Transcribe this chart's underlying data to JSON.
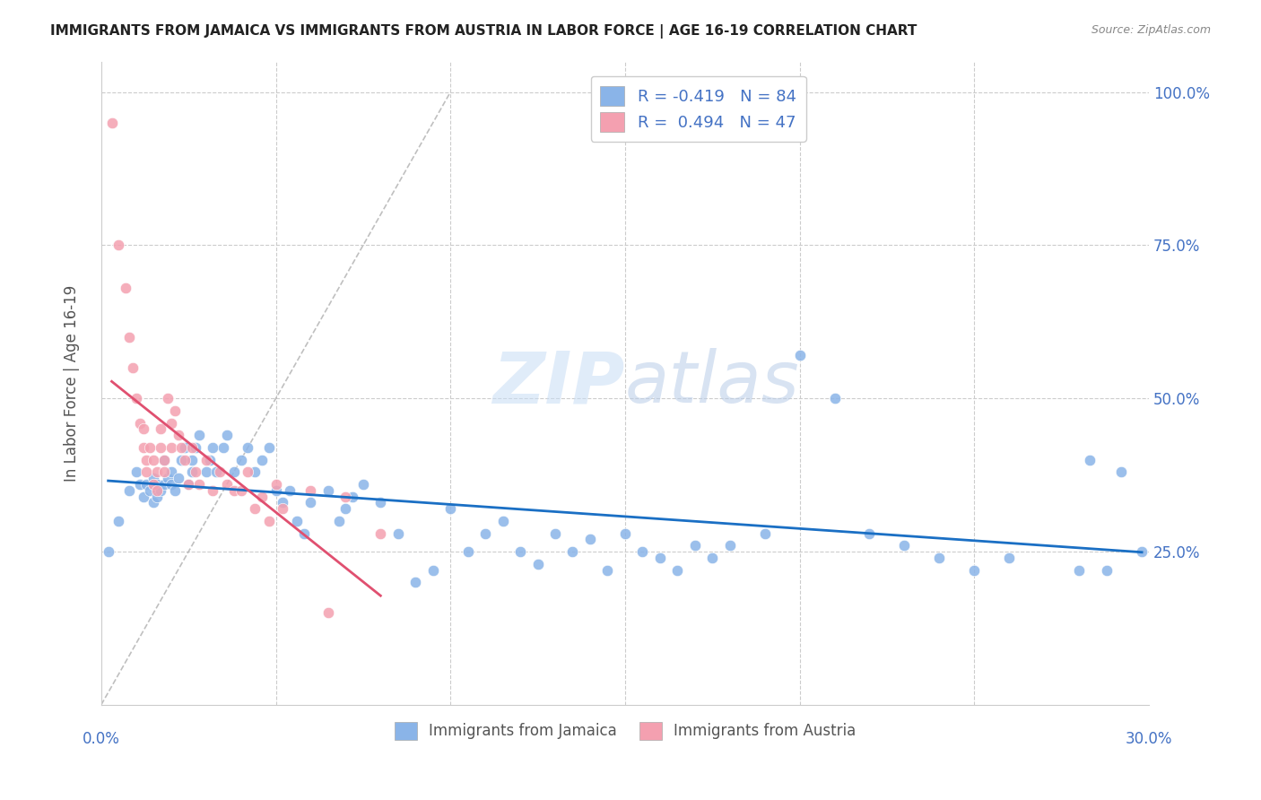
{
  "title": "IMMIGRANTS FROM JAMAICA VS IMMIGRANTS FROM AUSTRIA IN LABOR FORCE | AGE 16-19 CORRELATION CHART",
  "source": "Source: ZipAtlas.com",
  "ylabel": "In Labor Force | Age 16-19",
  "xlim": [
    0.0,
    0.3
  ],
  "ylim": [
    0.0,
    1.05
  ],
  "jamaica_color": "#8ab4e8",
  "austria_color": "#f4a0b0",
  "jamaica_R": -0.419,
  "jamaica_N": 84,
  "austria_R": 0.494,
  "austria_N": 47,
  "legend_jamaica_label": "Immigrants from Jamaica",
  "legend_austria_label": "Immigrants from Austria",
  "watermark_zip": "ZIP",
  "watermark_atlas": "atlas",
  "jamaica_scatter_x": [
    0.002,
    0.005,
    0.008,
    0.01,
    0.011,
    0.012,
    0.013,
    0.014,
    0.015,
    0.015,
    0.016,
    0.016,
    0.017,
    0.018,
    0.018,
    0.019,
    0.02,
    0.02,
    0.021,
    0.022,
    0.023,
    0.024,
    0.025,
    0.026,
    0.026,
    0.027,
    0.028,
    0.03,
    0.031,
    0.032,
    0.033,
    0.035,
    0.036,
    0.038,
    0.04,
    0.042,
    0.044,
    0.046,
    0.048,
    0.05,
    0.052,
    0.054,
    0.056,
    0.058,
    0.06,
    0.065,
    0.068,
    0.07,
    0.072,
    0.075,
    0.08,
    0.085,
    0.09,
    0.095,
    0.1,
    0.105,
    0.11,
    0.115,
    0.12,
    0.125,
    0.13,
    0.135,
    0.14,
    0.145,
    0.15,
    0.155,
    0.16,
    0.165,
    0.17,
    0.175,
    0.18,
    0.19,
    0.2,
    0.21,
    0.22,
    0.23,
    0.24,
    0.25,
    0.26,
    0.28,
    0.283,
    0.288,
    0.292,
    0.298
  ],
  "jamaica_scatter_y": [
    0.25,
    0.3,
    0.35,
    0.38,
    0.36,
    0.34,
    0.36,
    0.35,
    0.37,
    0.33,
    0.36,
    0.34,
    0.35,
    0.4,
    0.36,
    0.37,
    0.38,
    0.36,
    0.35,
    0.37,
    0.4,
    0.42,
    0.36,
    0.38,
    0.4,
    0.42,
    0.44,
    0.38,
    0.4,
    0.42,
    0.38,
    0.42,
    0.44,
    0.38,
    0.4,
    0.42,
    0.38,
    0.4,
    0.42,
    0.35,
    0.33,
    0.35,
    0.3,
    0.28,
    0.33,
    0.35,
    0.3,
    0.32,
    0.34,
    0.36,
    0.33,
    0.28,
    0.2,
    0.22,
    0.32,
    0.25,
    0.28,
    0.3,
    0.25,
    0.23,
    0.28,
    0.25,
    0.27,
    0.22,
    0.28,
    0.25,
    0.24,
    0.22,
    0.26,
    0.24,
    0.26,
    0.28,
    0.57,
    0.5,
    0.28,
    0.26,
    0.24,
    0.22,
    0.24,
    0.22,
    0.4,
    0.22,
    0.38,
    0.25
  ],
  "austria_scatter_x": [
    0.003,
    0.005,
    0.007,
    0.008,
    0.009,
    0.01,
    0.011,
    0.012,
    0.012,
    0.013,
    0.013,
    0.014,
    0.015,
    0.015,
    0.016,
    0.016,
    0.017,
    0.017,
    0.018,
    0.018,
    0.019,
    0.02,
    0.02,
    0.021,
    0.022,
    0.023,
    0.024,
    0.025,
    0.026,
    0.027,
    0.028,
    0.03,
    0.032,
    0.034,
    0.036,
    0.038,
    0.04,
    0.042,
    0.044,
    0.046,
    0.048,
    0.05,
    0.052,
    0.06,
    0.065,
    0.07,
    0.08
  ],
  "austria_scatter_y": [
    0.95,
    0.75,
    0.68,
    0.6,
    0.55,
    0.5,
    0.46,
    0.42,
    0.45,
    0.4,
    0.38,
    0.42,
    0.36,
    0.4,
    0.38,
    0.35,
    0.45,
    0.42,
    0.4,
    0.38,
    0.5,
    0.46,
    0.42,
    0.48,
    0.44,
    0.42,
    0.4,
    0.36,
    0.42,
    0.38,
    0.36,
    0.4,
    0.35,
    0.38,
    0.36,
    0.35,
    0.35,
    0.38,
    0.32,
    0.34,
    0.3,
    0.36,
    0.32,
    0.35,
    0.15,
    0.34,
    0.28
  ]
}
